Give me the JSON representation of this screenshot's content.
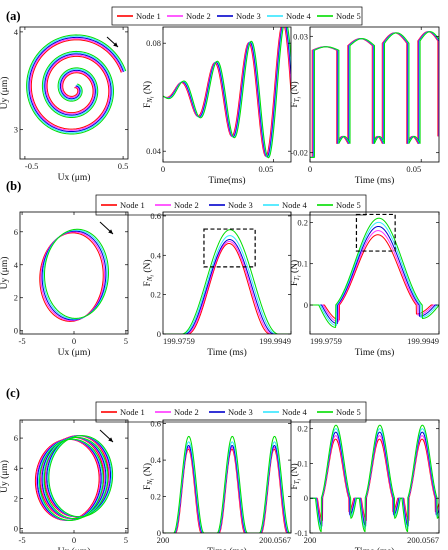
{
  "legend": [
    "Node 1",
    "Node 2",
    "Node 3",
    "Node 4",
    "Node 5"
  ],
  "colors": [
    "#ff0000",
    "#ff33ff",
    "#0000cc",
    "#33e6ff",
    "#00dd00"
  ],
  "chart_data": [
    {
      "id": "a",
      "label": "(a)",
      "subplots": [
        {
          "type": "line",
          "subtype": "phase-orbit-spiral",
          "xlabel": "Ux (μm)",
          "ylabel": "Uy (μm)",
          "xlim": [
            -0.55,
            0.55
          ],
          "ylim": [
            2.7,
            4.05
          ],
          "xticks": [
            -0.5,
            0.5
          ],
          "xtick_labels": [
            "-0.5",
            "0.5"
          ],
          "yticks": [
            3,
            4
          ],
          "ytick_labels": [
            "3",
            "4"
          ],
          "arrow": true,
          "arrow_direction": "clockwise"
        },
        {
          "type": "line",
          "xlabel": "Time(ms)",
          "ylabel": "F_{N_i} (N)",
          "xlim": [
            0,
            0.058
          ],
          "ylim": [
            0.036,
            0.086
          ],
          "xticks": [
            0,
            0.05
          ],
          "xtick_labels": [
            "0",
            "0.05"
          ],
          "yticks": [
            0.04,
            0.08
          ],
          "ytick_labels": [
            "0.04",
            "0.08"
          ]
        },
        {
          "type": "line",
          "xlabel": "Time (ms)",
          "ylabel": "F_{T_i} (N)",
          "xlim": [
            0,
            0.058
          ],
          "ylim": [
            -0.024,
            0.034
          ],
          "xticks": [
            0,
            0.05
          ],
          "xtick_labels": [
            "0",
            "0.05"
          ],
          "yticks": [
            -0.02,
            0.03
          ],
          "ytick_labels": [
            "-0.02",
            "0.03"
          ]
        }
      ]
    },
    {
      "id": "b",
      "label": "(b)",
      "subplots": [
        {
          "type": "line",
          "subtype": "phase-orbit-ellipse",
          "xlabel": "Ux (μm)",
          "ylabel": "Uy (μm)",
          "xlim": [
            -5.2,
            5.2
          ],
          "ylim": [
            -0.2,
            7.2
          ],
          "xticks": [
            -5,
            0,
            5
          ],
          "xtick_labels": [
            "-5",
            "0",
            "5"
          ],
          "yticks": [
            0,
            2,
            4,
            6
          ],
          "ytick_labels": [
            "0",
            "2",
            "4",
            "6"
          ],
          "arrow": true,
          "arrow_direction": "clockwise"
        },
        {
          "type": "line",
          "xlabel": "Time (ms)",
          "ylabel": "F_{N_i} (N)",
          "xlim": [
            199.9759,
            199.9949
          ],
          "ylim": [
            0,
            0.62
          ],
          "xticks": [
            199.9759,
            199.9949
          ],
          "xtick_labels": [
            "199.9759",
            "199.9949"
          ],
          "yticks": [
            0,
            0.2,
            0.4,
            0.6
          ],
          "ytick_labels": [
            "0",
            "0.2",
            "0.4",
            "0.6"
          ],
          "peak_values": [
            0.46,
            0.47,
            0.48,
            0.5,
            0.53
          ],
          "annotation": "dashed box around peaks"
        },
        {
          "type": "line",
          "xlabel": "Time (ms)",
          "ylabel": "F_{T_i} (N)",
          "xlim": [
            199.9759,
            199.9949
          ],
          "ylim": [
            -0.07,
            0.225
          ],
          "xticks": [
            199.9759,
            199.9949
          ],
          "xtick_labels": [
            "199.9759",
            "199.9949"
          ],
          "yticks": [
            0,
            0.1,
            0.2
          ],
          "ytick_labels": [
            "0",
            "0.1",
            "0.2"
          ],
          "peak_values": [
            0.17,
            0.18,
            0.19,
            0.2,
            0.21
          ],
          "annotation": "dashed box around peaks"
        }
      ]
    },
    {
      "id": "c",
      "label": "(c)",
      "subplots": [
        {
          "type": "line",
          "subtype": "phase-orbit-ellipse-bundle",
          "xlabel": "Ux (μm)",
          "ylabel": "Uy (μm)",
          "xlim": [
            -5.2,
            5.2
          ],
          "ylim": [
            -0.3,
            7.2
          ],
          "xticks": [
            -5,
            0,
            5
          ],
          "xtick_labels": [
            "-5",
            "0",
            "5"
          ],
          "yticks": [
            0,
            2,
            4,
            6
          ],
          "ytick_labels": [
            "0",
            "2",
            "4",
            "6"
          ],
          "arrow": true,
          "arrow_direction": "clockwise"
        },
        {
          "type": "line",
          "xlabel": "Time (ms)",
          "ylabel": "F_{N_i} (N)",
          "xlim": [
            200,
            200.0567
          ],
          "ylim": [
            0,
            0.62
          ],
          "xticks": [
            200,
            200.0567
          ],
          "xtick_labels": [
            "200",
            "200.0567"
          ],
          "yticks": [
            0,
            0.2,
            0.4,
            0.6
          ],
          "ytick_labels": [
            "0",
            "0.2",
            "0.4",
            "0.6"
          ],
          "peak_values": [
            0.46,
            0.47,
            0.48,
            0.5,
            0.53
          ]
        },
        {
          "type": "line",
          "xlabel": "Time (ms)",
          "ylabel": "F_{T_i} (N)",
          "xlim": [
            200,
            200.0567
          ],
          "ylim": [
            -0.1,
            0.225
          ],
          "xticks": [
            200,
            200.0567
          ],
          "xtick_labels": [
            "200",
            "200.0567"
          ],
          "yticks": [
            -0.1,
            0,
            0.1,
            0.2
          ],
          "ytick_labels": [
            "-0.1",
            "0",
            "0.1",
            "0.2"
          ],
          "peak_values": [
            0.17,
            0.18,
            0.19,
            0.2,
            0.21
          ]
        }
      ]
    }
  ]
}
